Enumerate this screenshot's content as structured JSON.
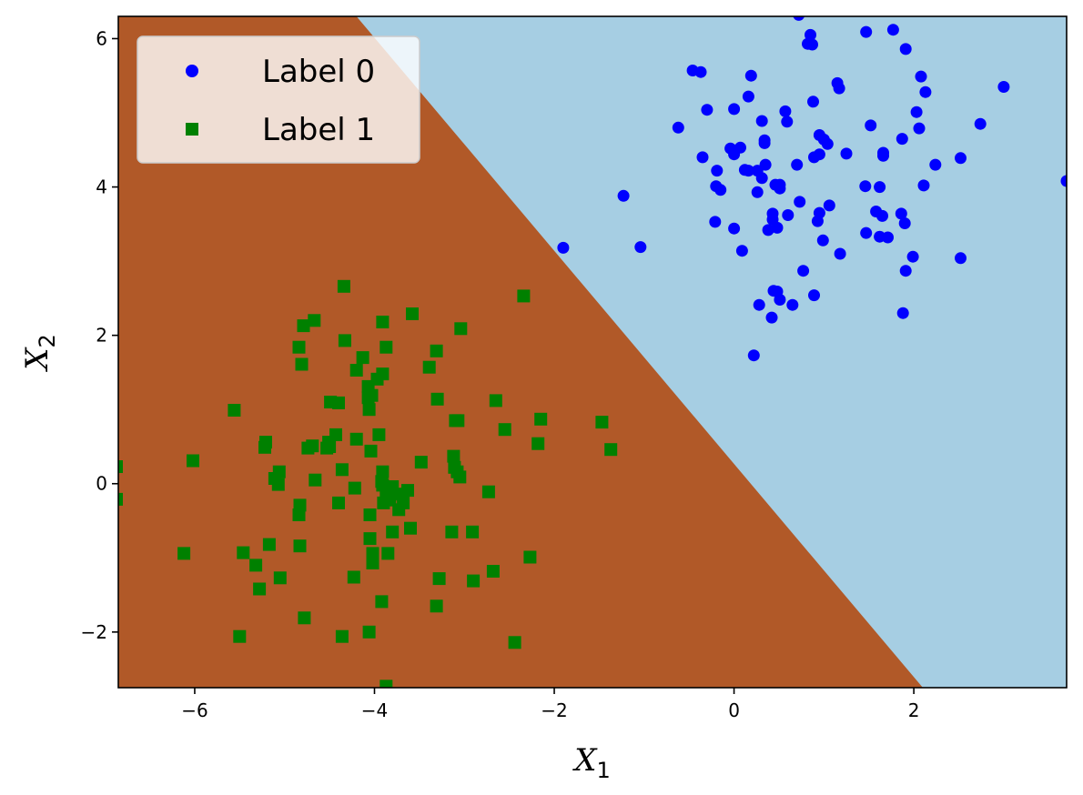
{
  "chart_data": {
    "type": "scatter",
    "xlabel": {
      "main": "X",
      "sub": "1"
    },
    "ylabel": {
      "main": "X",
      "sub": "2"
    },
    "xlim": [
      -6.85,
      3.7
    ],
    "ylim": [
      -2.75,
      6.3
    ],
    "xticks": [
      {
        "value": -6,
        "label": "−6"
      },
      {
        "value": -4,
        "label": "−4"
      },
      {
        "value": -2,
        "label": "−2"
      },
      {
        "value": 0,
        "label": "0"
      },
      {
        "value": 2,
        "label": "2"
      }
    ],
    "yticks": [
      {
        "value": -2,
        "label": "−2"
      },
      {
        "value": 0,
        "label": "0"
      },
      {
        "value": 2,
        "label": "2"
      },
      {
        "value": 4,
        "label": "4"
      },
      {
        "value": 6,
        "label": "6"
      }
    ],
    "decision_boundary": {
      "p1": [
        -4.2,
        6.3
      ],
      "p2": [
        2.1,
        -2.75
      ]
    },
    "legend_position": "upper-left",
    "region_colors": {
      "label_0": "#a6cee3",
      "label_1": "#b15928"
    },
    "series": [
      {
        "name": "Label 0",
        "marker": "circle",
        "color": "#0000ff",
        "points": [
          [
            0.72,
            6.32
          ],
          [
            0.85,
            6.05
          ],
          [
            0.82,
            5.93
          ],
          [
            0.87,
            5.92
          ],
          [
            1.47,
            6.09
          ],
          [
            1.77,
            6.12
          ],
          [
            1.91,
            5.86
          ],
          [
            -0.46,
            5.57
          ],
          [
            -0.37,
            5.55
          ],
          [
            0.19,
            5.5
          ],
          [
            2.08,
            5.49
          ],
          [
            3.0,
            5.35
          ],
          [
            1.15,
            5.4
          ],
          [
            1.17,
            5.33
          ],
          [
            2.13,
            5.28
          ],
          [
            0.16,
            5.22
          ],
          [
            0.88,
            5.15
          ],
          [
            -0.3,
            5.04
          ],
          [
            0.0,
            5.05
          ],
          [
            0.57,
            5.02
          ],
          [
            2.03,
            5.01
          ],
          [
            0.31,
            4.89
          ],
          [
            0.59,
            4.88
          ],
          [
            1.52,
            4.83
          ],
          [
            2.74,
            4.85
          ],
          [
            -0.62,
            4.8
          ],
          [
            2.06,
            4.79
          ],
          [
            0.95,
            4.7
          ],
          [
            1.0,
            4.64
          ],
          [
            1.87,
            4.65
          ],
          [
            1.04,
            4.58
          ],
          [
            0.34,
            4.63
          ],
          [
            0.34,
            4.59
          ],
          [
            -0.04,
            4.52
          ],
          [
            0.07,
            4.53
          ],
          [
            0.0,
            4.44
          ],
          [
            0.95,
            4.44
          ],
          [
            0.89,
            4.4
          ],
          [
            1.66,
            4.46
          ],
          [
            1.66,
            4.42
          ],
          [
            1.25,
            4.45
          ],
          [
            2.52,
            4.39
          ],
          [
            -0.35,
            4.4
          ],
          [
            2.24,
            4.3
          ],
          [
            0.35,
            4.3
          ],
          [
            0.7,
            4.3
          ],
          [
            0.12,
            4.23
          ],
          [
            0.16,
            4.22
          ],
          [
            0.26,
            4.22
          ],
          [
            -0.19,
            4.22
          ],
          [
            0.31,
            4.12
          ],
          [
            0.46,
            4.03
          ],
          [
            0.51,
            4.03
          ],
          [
            0.51,
            3.98
          ],
          [
            -0.2,
            4.01
          ],
          [
            -0.15,
            3.96
          ],
          [
            1.46,
            4.01
          ],
          [
            1.62,
            4.0
          ],
          [
            2.11,
            4.02
          ],
          [
            3.7,
            4.08
          ],
          [
            0.26,
            3.93
          ],
          [
            0.73,
            3.8
          ],
          [
            1.06,
            3.75
          ],
          [
            0.43,
            3.64
          ],
          [
            0.6,
            3.62
          ],
          [
            0.95,
            3.65
          ],
          [
            1.58,
            3.67
          ],
          [
            1.65,
            3.61
          ],
          [
            1.86,
            3.64
          ],
          [
            0.43,
            3.56
          ],
          [
            0.93,
            3.54
          ],
          [
            -0.21,
            3.53
          ],
          [
            1.9,
            3.51
          ],
          [
            0.0,
            3.44
          ],
          [
            0.38,
            3.42
          ],
          [
            0.48,
            3.45
          ],
          [
            1.47,
            3.38
          ],
          [
            1.62,
            3.33
          ],
          [
            1.71,
            3.32
          ],
          [
            0.99,
            3.28
          ],
          [
            -1.23,
            3.88
          ],
          [
            -1.04,
            3.19
          ],
          [
            -1.9,
            3.18
          ],
          [
            0.09,
            3.14
          ],
          [
            1.18,
            3.1
          ],
          [
            1.99,
            3.06
          ],
          [
            2.52,
            3.04
          ],
          [
            1.91,
            2.87
          ],
          [
            0.77,
            2.87
          ],
          [
            0.44,
            2.6
          ],
          [
            0.48,
            2.59
          ],
          [
            0.89,
            2.54
          ],
          [
            0.51,
            2.48
          ],
          [
            0.65,
            2.41
          ],
          [
            0.28,
            2.41
          ],
          [
            0.42,
            2.24
          ],
          [
            1.88,
            2.3
          ],
          [
            0.22,
            1.73
          ]
        ]
      },
      {
        "name": "Label 1",
        "marker": "square",
        "color": "#008000",
        "points": [
          [
            -4.34,
            2.66
          ],
          [
            -2.34,
            2.53
          ],
          [
            -3.58,
            2.29
          ],
          [
            -4.67,
            2.2
          ],
          [
            -4.79,
            2.13
          ],
          [
            -3.91,
            2.18
          ],
          [
            -3.04,
            2.09
          ],
          [
            -4.33,
            1.93
          ],
          [
            -4.84,
            1.84
          ],
          [
            -3.87,
            1.84
          ],
          [
            -3.31,
            1.79
          ],
          [
            -4.13,
            1.7
          ],
          [
            -4.81,
            1.61
          ],
          [
            -3.39,
            1.57
          ],
          [
            -4.2,
            1.53
          ],
          [
            -3.91,
            1.48
          ],
          [
            -3.97,
            1.41
          ],
          [
            -4.07,
            1.31
          ],
          [
            -4.03,
            1.19
          ],
          [
            -4.07,
            1.16
          ],
          [
            -3.3,
            1.14
          ],
          [
            -2.65,
            1.12
          ],
          [
            -4.49,
            1.1
          ],
          [
            -4.4,
            1.09
          ],
          [
            -4.06,
            1.0
          ],
          [
            -5.56,
            0.99
          ],
          [
            -3.1,
            0.85
          ],
          [
            -3.07,
            0.85
          ],
          [
            -2.15,
            0.87
          ],
          [
            -1.47,
            0.83
          ],
          [
            -2.55,
            0.73
          ],
          [
            -4.43,
            0.66
          ],
          [
            -3.95,
            0.66
          ],
          [
            -6.02,
            0.31
          ],
          [
            -5.21,
            0.56
          ],
          [
            -4.51,
            0.56
          ],
          [
            -4.2,
            0.6
          ],
          [
            -2.18,
            0.54
          ],
          [
            -5.22,
            0.49
          ],
          [
            -4.74,
            0.48
          ],
          [
            -4.69,
            0.51
          ],
          [
            -4.53,
            0.48
          ],
          [
            -4.5,
            0.5
          ],
          [
            -4.04,
            0.44
          ],
          [
            -1.37,
            0.46
          ],
          [
            -3.12,
            0.37
          ],
          [
            -3.48,
            0.29
          ],
          [
            -3.11,
            0.22
          ],
          [
            -3.08,
            0.16
          ],
          [
            -4.36,
            0.19
          ],
          [
            -3.05,
            0.09
          ],
          [
            -5.06,
            0.16
          ],
          [
            -3.91,
            0.16
          ],
          [
            -5.11,
            0.07
          ],
          [
            -4.66,
            0.05
          ],
          [
            -3.92,
            0.03
          ],
          [
            -5.07,
            -0.01
          ],
          [
            -3.91,
            -0.02
          ],
          [
            -4.22,
            -0.06
          ],
          [
            -3.8,
            -0.04
          ],
          [
            -3.63,
            -0.09
          ],
          [
            -2.73,
            -0.11
          ],
          [
            -3.77,
            -0.14
          ],
          [
            -3.87,
            -0.12
          ],
          [
            -3.83,
            -0.22
          ],
          [
            -3.9,
            -0.26
          ],
          [
            -3.68,
            -0.26
          ],
          [
            -4.4,
            -0.26
          ],
          [
            -4.83,
            -0.29
          ],
          [
            -3.73,
            -0.35
          ],
          [
            -4.84,
            -0.42
          ],
          [
            -4.05,
            -0.42
          ],
          [
            -3.8,
            -0.65
          ],
          [
            -3.6,
            -0.6
          ],
          [
            -3.14,
            -0.65
          ],
          [
            -2.91,
            -0.65
          ],
          [
            -4.05,
            -0.74
          ],
          [
            -5.17,
            -0.82
          ],
          [
            -4.83,
            -0.84
          ],
          [
            -3.85,
            -0.94
          ],
          [
            -6.12,
            -0.94
          ],
          [
            -5.46,
            -0.93
          ],
          [
            -4.02,
            -0.94
          ],
          [
            -4.02,
            -1.07
          ],
          [
            -2.27,
            -0.99
          ],
          [
            -5.32,
            -1.1
          ],
          [
            -2.68,
            -1.18
          ],
          [
            -5.05,
            -1.27
          ],
          [
            -4.23,
            -1.26
          ],
          [
            -3.28,
            -1.28
          ],
          [
            -2.9,
            -1.31
          ],
          [
            -5.28,
            -1.42
          ],
          [
            -3.92,
            -1.59
          ],
          [
            -3.31,
            -1.65
          ],
          [
            -4.78,
            -1.81
          ],
          [
            -4.06,
            -2.0
          ],
          [
            -5.5,
            -2.06
          ],
          [
            -4.36,
            -2.06
          ],
          [
            -2.44,
            -2.14
          ],
          [
            -3.87,
            -2.73
          ],
          [
            -6.87,
            0.23
          ],
          [
            -6.87,
            -0.21
          ]
        ]
      }
    ]
  }
}
